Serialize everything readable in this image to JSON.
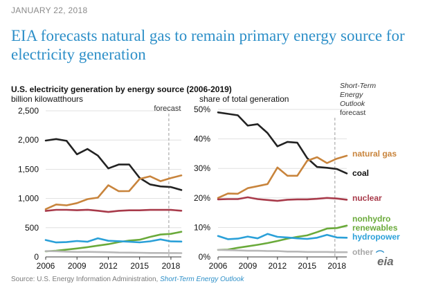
{
  "header": {
    "date": "JANUARY 22, 2018",
    "title": "EIA forecasts natural gas to remain primary energy source for electricity generation"
  },
  "chart_heading": "U.S. electricity generation by energy source (2006-2019)",
  "steo_label": {
    "line1": "Short-Term",
    "line2": "Energy",
    "line3": "Outlook",
    "line4": "forecast"
  },
  "colors": {
    "natural_gas": "#c8843c",
    "coal": "#222222",
    "nuclear": "#a83a4a",
    "renewables": "#6aaa3a",
    "hydropower": "#2aa0d8",
    "other": "#b8b8b8",
    "forecast_line": "#9a9a9a",
    "grid": "#d9d9d9"
  },
  "chart_data": [
    {
      "type": "line",
      "title": "U.S. electricity generation by energy source (2006-2019)",
      "ylabel": "billion kilowatthours",
      "forecast_label": "forecast",
      "forecast_start": 2017.8,
      "x": [
        2006,
        2007,
        2008,
        2009,
        2010,
        2011,
        2012,
        2013,
        2014,
        2015,
        2016,
        2017,
        2018,
        2019
      ],
      "xticks": [
        2006,
        2009,
        2012,
        2015,
        2018
      ],
      "xtick_labels": [
        "2006",
        "2009",
        "2012",
        "2015",
        "2018"
      ],
      "xlim": [
        2006,
        2019
      ],
      "ylim": [
        0,
        2500
      ],
      "yticks": [
        0,
        500,
        1000,
        1500,
        2000,
        2500
      ],
      "ytick_labels": [
        "0",
        "500",
        "1,000",
        "1,500",
        "2,000",
        "2,500"
      ],
      "series": [
        {
          "name": "coal",
          "key": "coal",
          "values": [
            1990,
            2016,
            1986,
            1756,
            1847,
            1733,
            1514,
            1581,
            1582,
            1352,
            1240,
            1206,
            1195,
            1145
          ]
        },
        {
          "name": "natural gas",
          "key": "natural_gas",
          "values": [
            816,
            897,
            883,
            921,
            988,
            1014,
            1226,
            1124,
            1127,
            1334,
            1379,
            1296,
            1350,
            1395
          ]
        },
        {
          "name": "nuclear",
          "key": "nuclear",
          "values": [
            787,
            806,
            806,
            799,
            807,
            790,
            769,
            789,
            797,
            797,
            805,
            805,
            805,
            790
          ]
        },
        {
          "name": "nonhydro renewables",
          "key": "renewables",
          "values": [
            96,
            105,
            126,
            144,
            167,
            193,
            218,
            253,
            280,
            294,
            343,
            383,
            395,
            430
          ]
        },
        {
          "name": "hydropower",
          "key": "hydropower",
          "values": [
            289,
            248,
            254,
            273,
            260,
            319,
            276,
            269,
            259,
            249,
            267,
            300,
            265,
            263
          ]
        },
        {
          "name": "other",
          "key": "other",
          "values": [
            100,
            97,
            90,
            85,
            86,
            84,
            80,
            75,
            73,
            71,
            68,
            67,
            66,
            65
          ]
        }
      ]
    },
    {
      "type": "line",
      "title": "share of total generation",
      "ylabel": "share of total generation",
      "forecast_label": "forecast",
      "forecast_start": 2017.8,
      "x": [
        2006,
        2007,
        2008,
        2009,
        2010,
        2011,
        2012,
        2013,
        2014,
        2015,
        2016,
        2017,
        2018,
        2019
      ],
      "xticks": [
        2006,
        2009,
        2012,
        2015,
        2018
      ],
      "xtick_labels": [
        "2006",
        "2009",
        "2012",
        "2015",
        "2018"
      ],
      "xlim": [
        2006,
        2019
      ],
      "ylim": [
        0,
        50
      ],
      "yticks": [
        0,
        10,
        20,
        30,
        40,
        50
      ],
      "ytick_labels": [
        "0%",
        "10%",
        "20%",
        "30%",
        "40%",
        "50%"
      ],
      "series": [
        {
          "name": "coal",
          "key": "coal",
          "values": [
            49,
            48.5,
            48,
            44.5,
            45,
            42,
            37.5,
            39,
            38.7,
            33.5,
            30.5,
            30.2,
            29.8,
            28.3
          ]
        },
        {
          "name": "natural gas",
          "key": "natural_gas",
          "values": [
            20,
            21.5,
            21.4,
            23.3,
            24,
            24.7,
            30.3,
            27.5,
            27.5,
            32.6,
            33.8,
            31.8,
            33.3,
            34.3
          ]
        },
        {
          "name": "nuclear",
          "key": "nuclear",
          "values": [
            19.5,
            19.6,
            19.6,
            20.2,
            19.6,
            19.3,
            19.0,
            19.4,
            19.5,
            19.5,
            19.7,
            20.0,
            19.8,
            19.4
          ]
        },
        {
          "name": "nonhydro renewables",
          "key": "renewables",
          "values": [
            2.4,
            2.5,
            3.1,
            3.6,
            4.1,
            4.7,
            5.4,
            6.2,
            6.8,
            7.3,
            8.4,
            9.6,
            9.8,
            10.6
          ]
        },
        {
          "name": "hydropower",
          "key": "hydropower",
          "values": [
            7.1,
            6.0,
            6.2,
            6.9,
            6.3,
            7.8,
            6.8,
            6.6,
            6.3,
            6.1,
            6.5,
            7.5,
            6.6,
            6.5
          ]
        },
        {
          "name": "other",
          "key": "other",
          "values": [
            2.4,
            2.3,
            2.2,
            2.1,
            2.1,
            2.0,
            2.0,
            1.8,
            1.8,
            1.7,
            1.7,
            1.7,
            1.6,
            1.6
          ]
        }
      ],
      "series_labels": [
        {
          "key": "natural_gas",
          "lines": [
            "natural gas"
          ]
        },
        {
          "key": "coal",
          "lines": [
            "coal"
          ]
        },
        {
          "key": "nuclear",
          "lines": [
            "nuclear"
          ]
        },
        {
          "key": "renewables",
          "lines": [
            "nonhydro",
            "renewables"
          ]
        },
        {
          "key": "hydropower",
          "lines": [
            "hydropower"
          ]
        },
        {
          "key": "other",
          "lines": [
            "other"
          ]
        }
      ]
    }
  ],
  "footer": {
    "source_prefix": "Source: U.S. Energy Information Administration, ",
    "source_link": "Short-Term Energy Outlook",
    "logo": "eia"
  }
}
